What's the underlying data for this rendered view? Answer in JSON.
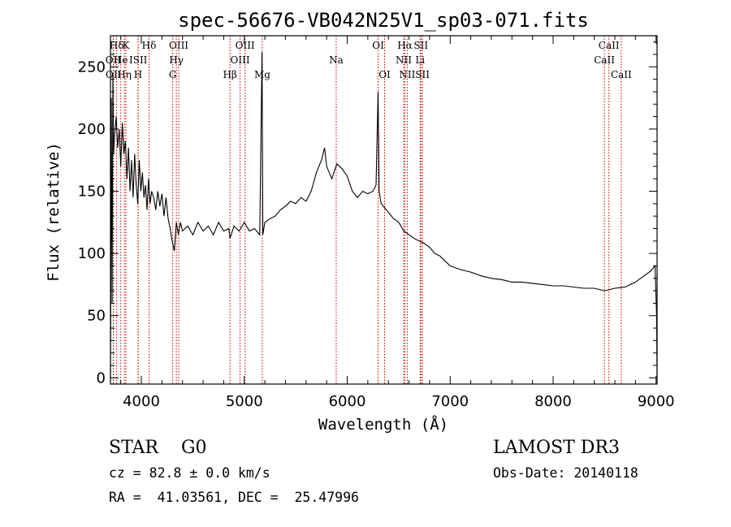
{
  "colors": {
    "spectrum": "#000000",
    "line_marker": "#c00000"
  },
  "info": {
    "left_line1": "STAR    G0",
    "left_line2": "cz = 82.8 ± 0.0 km/s",
    "left_line3": "RA =  41.03561, DEC =  25.47996",
    "right_line1": "LAMOST DR3",
    "right_line2": "Obs-Date: 20140118"
  },
  "chart_data": {
    "type": "line",
    "title": "spec-56676-VB042N25V1_sp03-071.fits",
    "xlabel": "Wavelength (Å)",
    "ylabel": "Flux (relative)",
    "xlim": [
      3700,
      9010
    ],
    "ylim": [
      -5,
      275
    ],
    "xticks": [
      4000,
      5000,
      6000,
      7000,
      8000,
      9000
    ],
    "yticks": [
      0,
      50,
      100,
      150,
      200,
      250
    ],
    "grid": false,
    "series": [
      {
        "values_xy": [
          [
            3700,
            0
          ],
          [
            3708,
            225
          ],
          [
            3716,
            60
          ],
          [
            3724,
            245
          ],
          [
            3730,
            180
          ],
          [
            3740,
            195
          ],
          [
            3755,
            210
          ],
          [
            3770,
            185
          ],
          [
            3785,
            200
          ],
          [
            3800,
            170
          ],
          [
            3815,
            205
          ],
          [
            3830,
            180
          ],
          [
            3845,
            190
          ],
          [
            3860,
            160
          ],
          [
            3875,
            185
          ],
          [
            3890,
            150
          ],
          [
            3905,
            175
          ],
          [
            3920,
            145
          ],
          [
            3935,
            180
          ],
          [
            3950,
            155
          ],
          [
            3965,
            140
          ],
          [
            3980,
            175
          ],
          [
            3995,
            150
          ],
          [
            4010,
            165
          ],
          [
            4025,
            145
          ],
          [
            4040,
            155
          ],
          [
            4055,
            135
          ],
          [
            4070,
            160
          ],
          [
            4085,
            140
          ],
          [
            4100,
            150
          ],
          [
            4120,
            145
          ],
          [
            4140,
            135
          ],
          [
            4160,
            150
          ],
          [
            4180,
            138
          ],
          [
            4200,
            148
          ],
          [
            4220,
            130
          ],
          [
            4240,
            145
          ],
          [
            4260,
            128
          ],
          [
            4280,
            120
          ],
          [
            4300,
            110
          ],
          [
            4320,
            102
          ],
          [
            4340,
            125
          ],
          [
            4360,
            115
          ],
          [
            4380,
            125
          ],
          [
            4400,
            118
          ],
          [
            4450,
            122
          ],
          [
            4500,
            115
          ],
          [
            4550,
            125
          ],
          [
            4600,
            118
          ],
          [
            4650,
            122
          ],
          [
            4700,
            115
          ],
          [
            4750,
            125
          ],
          [
            4800,
            118
          ],
          [
            4850,
            120
          ],
          [
            4861,
            112
          ],
          [
            4900,
            122
          ],
          [
            4950,
            118
          ],
          [
            5000,
            125
          ],
          [
            5050,
            118
          ],
          [
            5100,
            120
          ],
          [
            5150,
            115
          ],
          [
            5172,
            262
          ],
          [
            5180,
            115
          ],
          [
            5200,
            125
          ],
          [
            5250,
            128
          ],
          [
            5300,
            130
          ],
          [
            5350,
            135
          ],
          [
            5400,
            138
          ],
          [
            5450,
            142
          ],
          [
            5500,
            140
          ],
          [
            5550,
            145
          ],
          [
            5600,
            142
          ],
          [
            5650,
            150
          ],
          [
            5700,
            165
          ],
          [
            5750,
            175
          ],
          [
            5780,
            185
          ],
          [
            5800,
            170
          ],
          [
            5850,
            160
          ],
          [
            5900,
            172
          ],
          [
            5950,
            168
          ],
          [
            6000,
            162
          ],
          [
            6050,
            150
          ],
          [
            6100,
            145
          ],
          [
            6150,
            150
          ],
          [
            6200,
            148
          ],
          [
            6250,
            150
          ],
          [
            6280,
            155
          ],
          [
            6300,
            230
          ],
          [
            6310,
            150
          ],
          [
            6330,
            140
          ],
          [
            6380,
            135
          ],
          [
            6450,
            128
          ],
          [
            6500,
            125
          ],
          [
            6550,
            118
          ],
          [
            6600,
            115
          ],
          [
            6650,
            112
          ],
          [
            6700,
            110
          ],
          [
            6750,
            108
          ],
          [
            6800,
            105
          ],
          [
            6850,
            100
          ],
          [
            6900,
            98
          ],
          [
            6950,
            94
          ],
          [
            7000,
            90
          ],
          [
            7100,
            87
          ],
          [
            7200,
            85
          ],
          [
            7300,
            82
          ],
          [
            7400,
            80
          ],
          [
            7500,
            79
          ],
          [
            7600,
            77
          ],
          [
            7700,
            77
          ],
          [
            7800,
            76
          ],
          [
            7900,
            75
          ],
          [
            8000,
            74
          ],
          [
            8100,
            74
          ],
          [
            8200,
            73
          ],
          [
            8300,
            72
          ],
          [
            8400,
            72
          ],
          [
            8500,
            70
          ],
          [
            8550,
            71
          ],
          [
            8600,
            72
          ],
          [
            8700,
            73
          ],
          [
            8800,
            77
          ],
          [
            8900,
            83
          ],
          [
            8950,
            86
          ],
          [
            8990,
            90
          ],
          [
            9005,
            50
          ],
          [
            9010,
            0
          ]
        ]
      }
    ],
    "lines": [
      {
        "name": "Hδ",
        "x": 3760,
        "row": 0
      },
      {
        "name": "K",
        "x": 3850,
        "row": 0
      },
      {
        "name": "Hδ",
        "x": 4075,
        "row": 0
      },
      {
        "name": "OIII",
        "x": 4363,
        "row": 0
      },
      {
        "name": "OIII",
        "x": 5007,
        "row": 0
      },
      {
        "name": "OI",
        "x": 6300,
        "row": 0
      },
      {
        "name": "Hα",
        "x": 6560,
        "row": 0
      },
      {
        "name": "SII",
        "x": 6716,
        "row": 0
      },
      {
        "name": "CaII",
        "x": 8542,
        "row": 0
      },
      {
        "name": "OII",
        "x": 3727,
        "row": 1
      },
      {
        "name": "He",
        "x": 3800,
        "row": 1
      },
      {
        "name": "ISII",
        "x": 3970,
        "row": 1
      },
      {
        "name": "Hγ",
        "x": 4340,
        "row": 1
      },
      {
        "name": "OIII",
        "x": 4959,
        "row": 1
      },
      {
        "name": "Na",
        "x": 5893,
        "row": 1
      },
      {
        "name": "NII",
        "x": 6548,
        "row": 1
      },
      {
        "name": "Li",
        "x": 6708,
        "row": 1
      },
      {
        "name": "CaII",
        "x": 8498,
        "row": 1
      },
      {
        "name": "OII",
        "x": 3729,
        "row": 2
      },
      {
        "name": "Hη",
        "x": 3835,
        "row": 2
      },
      {
        "name": "H",
        "x": 3968,
        "row": 2
      },
      {
        "name": "G",
        "x": 4305,
        "row": 2
      },
      {
        "name": "Hβ",
        "x": 4861,
        "row": 2
      },
      {
        "name": "Mg",
        "x": 5175,
        "row": 2
      },
      {
        "name": "OI",
        "x": 6363,
        "row": 2
      },
      {
        "name": "NII",
        "x": 6583,
        "row": 2
      },
      {
        "name": "SII",
        "x": 6731,
        "row": 2
      },
      {
        "name": "CaII",
        "x": 8662,
        "row": 2
      }
    ]
  }
}
